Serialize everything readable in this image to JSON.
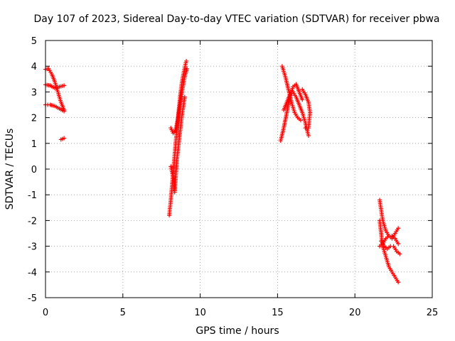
{
  "chart_data": {
    "type": "scatter",
    "title": "Day 107 of 2023, Sidereal Day-to-day VTEC variation (SDTVAR) for receiver pbwa",
    "xlabel": "GPS time / hours",
    "ylabel": "SDTVAR / TECUs",
    "xlim": [
      0,
      25
    ],
    "ylim": [
      -5,
      5
    ],
    "xticks": [
      0,
      5,
      10,
      15,
      20,
      25
    ],
    "yticks": [
      -5,
      -4,
      -3,
      -2,
      -1,
      0,
      1,
      2,
      3,
      4,
      5
    ],
    "grid": true,
    "marker": "+",
    "color": "#ff0000",
    "tracks": [
      [
        [
          0.0,
          3.88
        ],
        [
          0.2,
          3.9
        ],
        [
          0.4,
          3.7
        ],
        [
          0.6,
          3.4
        ],
        [
          0.8,
          3.0
        ],
        [
          1.0,
          2.6
        ],
        [
          1.2,
          2.3
        ]
      ],
      [
        [
          0.0,
          3.28
        ],
        [
          0.3,
          3.25
        ],
        [
          0.6,
          3.15
        ],
        [
          0.9,
          3.2
        ],
        [
          1.2,
          3.25
        ]
      ],
      [
        [
          0.0,
          2.5
        ],
        [
          0.3,
          2.5
        ],
        [
          0.6,
          2.45
        ],
        [
          0.9,
          2.35
        ],
        [
          1.2,
          2.25
        ]
      ],
      [
        [
          1.0,
          1.15
        ],
        [
          1.2,
          1.2
        ]
      ],
      [
        [
          8.0,
          -1.8
        ],
        [
          8.1,
          -1.2
        ],
        [
          8.2,
          -0.5
        ],
        [
          8.3,
          0.2
        ],
        [
          8.4,
          0.9
        ],
        [
          8.5,
          1.6
        ],
        [
          8.6,
          2.2
        ],
        [
          8.7,
          2.8
        ],
        [
          8.8,
          3.3
        ],
        [
          8.95,
          3.8
        ],
        [
          9.1,
          4.2
        ]
      ],
      [
        [
          8.1,
          1.6
        ],
        [
          8.25,
          1.4
        ],
        [
          8.4,
          1.5
        ],
        [
          8.55,
          1.9
        ],
        [
          8.7,
          2.5
        ],
        [
          8.85,
          3.1
        ],
        [
          9.0,
          3.6
        ],
        [
          9.15,
          3.9
        ]
      ],
      [
        [
          8.1,
          0.1
        ],
        [
          8.25,
          -0.3
        ],
        [
          8.35,
          -0.9
        ],
        [
          8.5,
          0.4
        ],
        [
          8.65,
          1.2
        ],
        [
          8.8,
          2.0
        ],
        [
          9.0,
          2.8
        ]
      ],
      [
        [
          15.2,
          1.1
        ],
        [
          15.4,
          1.6
        ],
        [
          15.6,
          2.2
        ],
        [
          15.8,
          2.8
        ],
        [
          16.0,
          3.2
        ],
        [
          16.2,
          3.3
        ],
        [
          16.4,
          3.0
        ],
        [
          16.6,
          2.7
        ]
      ],
      [
        [
          15.3,
          4.0
        ],
        [
          15.5,
          3.6
        ],
        [
          15.7,
          3.1
        ],
        [
          15.9,
          2.6
        ],
        [
          16.1,
          2.2
        ],
        [
          16.3,
          2.0
        ],
        [
          16.5,
          1.9
        ]
      ],
      [
        [
          15.4,
          2.3
        ],
        [
          15.6,
          2.6
        ],
        [
          15.8,
          2.9
        ],
        [
          16.0,
          3.0
        ],
        [
          16.2,
          2.8
        ],
        [
          16.4,
          2.5
        ],
        [
          16.6,
          2.2
        ],
        [
          16.8,
          1.8
        ],
        [
          17.0,
          1.3
        ]
      ],
      [
        [
          16.6,
          3.1
        ],
        [
          16.8,
          2.9
        ],
        [
          17.0,
          2.6
        ],
        [
          17.1,
          2.2
        ],
        [
          17.0,
          1.6
        ],
        [
          16.8,
          1.6
        ]
      ],
      [
        [
          21.6,
          -1.2
        ],
        [
          21.7,
          -1.6
        ],
        [
          21.8,
          -2.0
        ],
        [
          22.0,
          -2.4
        ],
        [
          22.2,
          -2.6
        ],
        [
          22.4,
          -2.7
        ],
        [
          22.6,
          -2.5
        ],
        [
          22.8,
          -2.3
        ]
      ],
      [
        [
          21.6,
          -2.0
        ],
        [
          21.7,
          -2.5
        ],
        [
          21.8,
          -3.0
        ],
        [
          22.0,
          -3.4
        ],
        [
          22.2,
          -3.8
        ],
        [
          22.4,
          -4.0
        ],
        [
          22.6,
          -4.2
        ],
        [
          22.8,
          -4.4
        ]
      ],
      [
        [
          21.6,
          -3.0
        ],
        [
          21.8,
          -2.9
        ],
        [
          22.0,
          -2.7
        ],
        [
          22.2,
          -2.6
        ],
        [
          22.4,
          -2.6
        ],
        [
          22.6,
          -2.7
        ],
        [
          22.8,
          -2.9
        ]
      ],
      [
        [
          21.7,
          -2.8
        ],
        [
          21.9,
          -3.0
        ],
        [
          22.1,
          -3.1
        ],
        [
          22.3,
          -3.0
        ],
        [
          22.5,
          -3.0
        ],
        [
          22.7,
          -3.2
        ],
        [
          22.9,
          -3.3
        ]
      ]
    ]
  }
}
